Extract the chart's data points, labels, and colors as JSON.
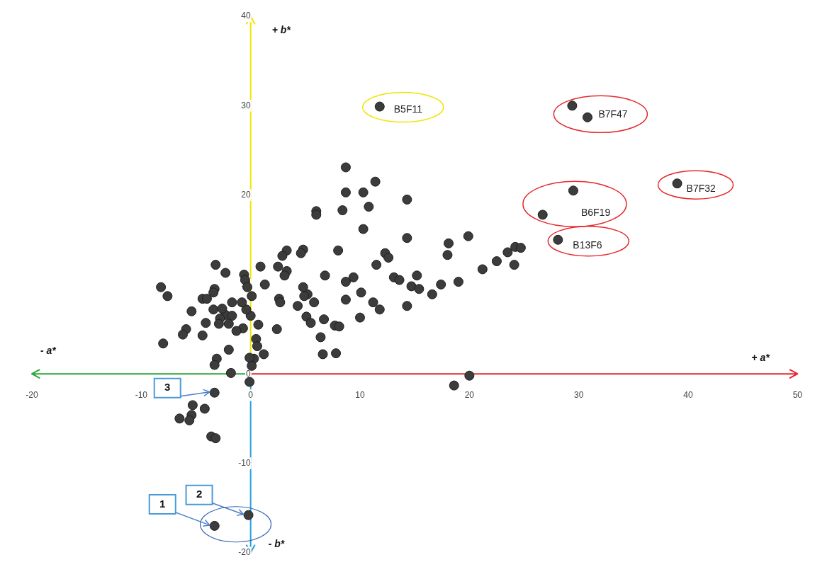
{
  "chart_data": {
    "type": "scatter",
    "xlabel": "+ a*",
    "ylabel": "+ b*",
    "xlim": [
      -20,
      50
    ],
    "ylim": [
      -20,
      40
    ],
    "xticks": [
      -20,
      -10,
      0,
      10,
      20,
      30,
      40,
      50
    ],
    "yticks": [
      -20,
      -10,
      0,
      10,
      20,
      30,
      40
    ],
    "marker": "circle",
    "legend": false,
    "x": [
      11.8,
      29.4,
      30.8,
      39.0,
      29.5,
      26.7,
      28.1,
      8.7,
      11.4,
      8.7,
      10.3,
      10.8,
      8.4,
      6.0,
      6.0,
      14.3,
      10.3,
      14.3,
      19.9,
      18.1,
      18.0,
      8.0,
      3.3,
      4.8,
      4.6,
      2.9,
      12.3,
      12.6,
      11.5,
      -3.2,
      -2.3,
      0.9,
      2.5,
      3.3,
      3.1,
      6.8,
      9.4,
      8.7,
      13.1,
      13.6,
      15.2,
      14.7,
      15.4,
      16.6,
      17.4,
      19.0,
      21.2,
      22.5,
      23.5,
      24.2,
      24.7,
      24.1,
      14.3,
      11.8,
      11.2,
      10.1,
      8.7,
      10.0,
      7.7,
      8.1,
      6.7,
      5.8,
      5.2,
      4.8,
      4.9,
      4.3,
      5.1,
      5.5,
      6.4,
      6.6,
      7.8,
      2.6,
      2.7,
      1.3,
      2.4,
      1.2,
      0.7,
      0.5,
      0.6,
      0.3,
      -0.1,
      0.1,
      -0.1,
      -0.6,
      -0.5,
      -0.3,
      0.1,
      0.0,
      -0.7,
      -0.4,
      -0.8,
      -1.7,
      -2.3,
      -1.7,
      -2.0,
      -3.3,
      -3.4,
      -4.4,
      -4.0,
      -3.4,
      -2.6,
      -2.8,
      -2.9,
      -4.1,
      -4.4,
      -5.4,
      -5.9,
      -6.2,
      -7.6,
      -8.2,
      -8.0,
      -1.3,
      -2.0,
      -3.1,
      -3.3,
      -1.8,
      -3.3,
      -4.2,
      -5.3,
      -5.4,
      -5.6,
      -6.5,
      -3.6,
      -3.2,
      -3.3,
      -0.2,
      18.6,
      20.0
    ],
    "values": [
      29.9,
      30.0,
      28.7,
      21.3,
      20.5,
      17.8,
      15.0,
      23.1,
      21.5,
      20.3,
      20.3,
      18.7,
      18.3,
      18.2,
      17.8,
      19.5,
      16.2,
      15.2,
      15.4,
      14.6,
      13.3,
      13.8,
      13.8,
      13.9,
      13.5,
      13.2,
      13.5,
      13.0,
      12.2,
      12.2,
      11.3,
      12.0,
      12.0,
      11.5,
      11.0,
      11.0,
      10.8,
      10.3,
      10.8,
      10.5,
      11.0,
      9.8,
      9.5,
      8.9,
      10.0,
      10.3,
      11.7,
      12.6,
      13.6,
      14.2,
      14.1,
      12.2,
      7.6,
      7.2,
      8.0,
      9.1,
      8.3,
      6.3,
      5.4,
      5.3,
      6.1,
      8.0,
      8.9,
      9.7,
      8.7,
      7.6,
      6.4,
      5.7,
      4.1,
      2.2,
      2.3,
      8.4,
      8.0,
      10.0,
      5.0,
      2.2,
      5.5,
      3.9,
      3.1,
      1.7,
      1.8,
      0.9,
      -0.9,
      11.1,
      10.5,
      9.7,
      8.7,
      6.5,
      5.1,
      7.2,
      8.0,
      8.0,
      6.6,
      6.5,
      5.6,
      9.5,
      9.1,
      8.4,
      8.4,
      7.2,
      7.3,
      6.2,
      5.6,
      5.7,
      4.3,
      7.0,
      5.0,
      4.4,
      8.7,
      9.7,
      3.4,
      4.8,
      2.7,
      1.7,
      1.0,
      0.1,
      -2.1,
      -3.9,
      -3.5,
      -4.6,
      -5.2,
      -5.0,
      -7.0,
      -7.2,
      -17.0,
      -15.8,
      -1.3,
      -0.2
    ],
    "color": "#3c3c3c",
    "annotations": [
      "- a*",
      "- b*",
      {
        "text": "B5F11",
        "x": 11.8,
        "y": 29.9
      },
      {
        "text": "B7F47",
        "x": 29.4,
        "y": 30.0
      },
      {
        "text": "B7F32",
        "x": 39.0,
        "y": 21.3
      },
      {
        "text": "B6F19",
        "x": 29.5,
        "y": 20.5
      },
      {
        "text": "B13F6",
        "x": 28.1,
        "y": 15.0
      },
      {
        "text": "1",
        "x": -3.3,
        "y": -17.0
      },
      {
        "text": "2",
        "x": -0.2,
        "y": -15.8
      },
      {
        "text": "3",
        "x": -3.3,
        "y": -2.1
      }
    ]
  }
}
